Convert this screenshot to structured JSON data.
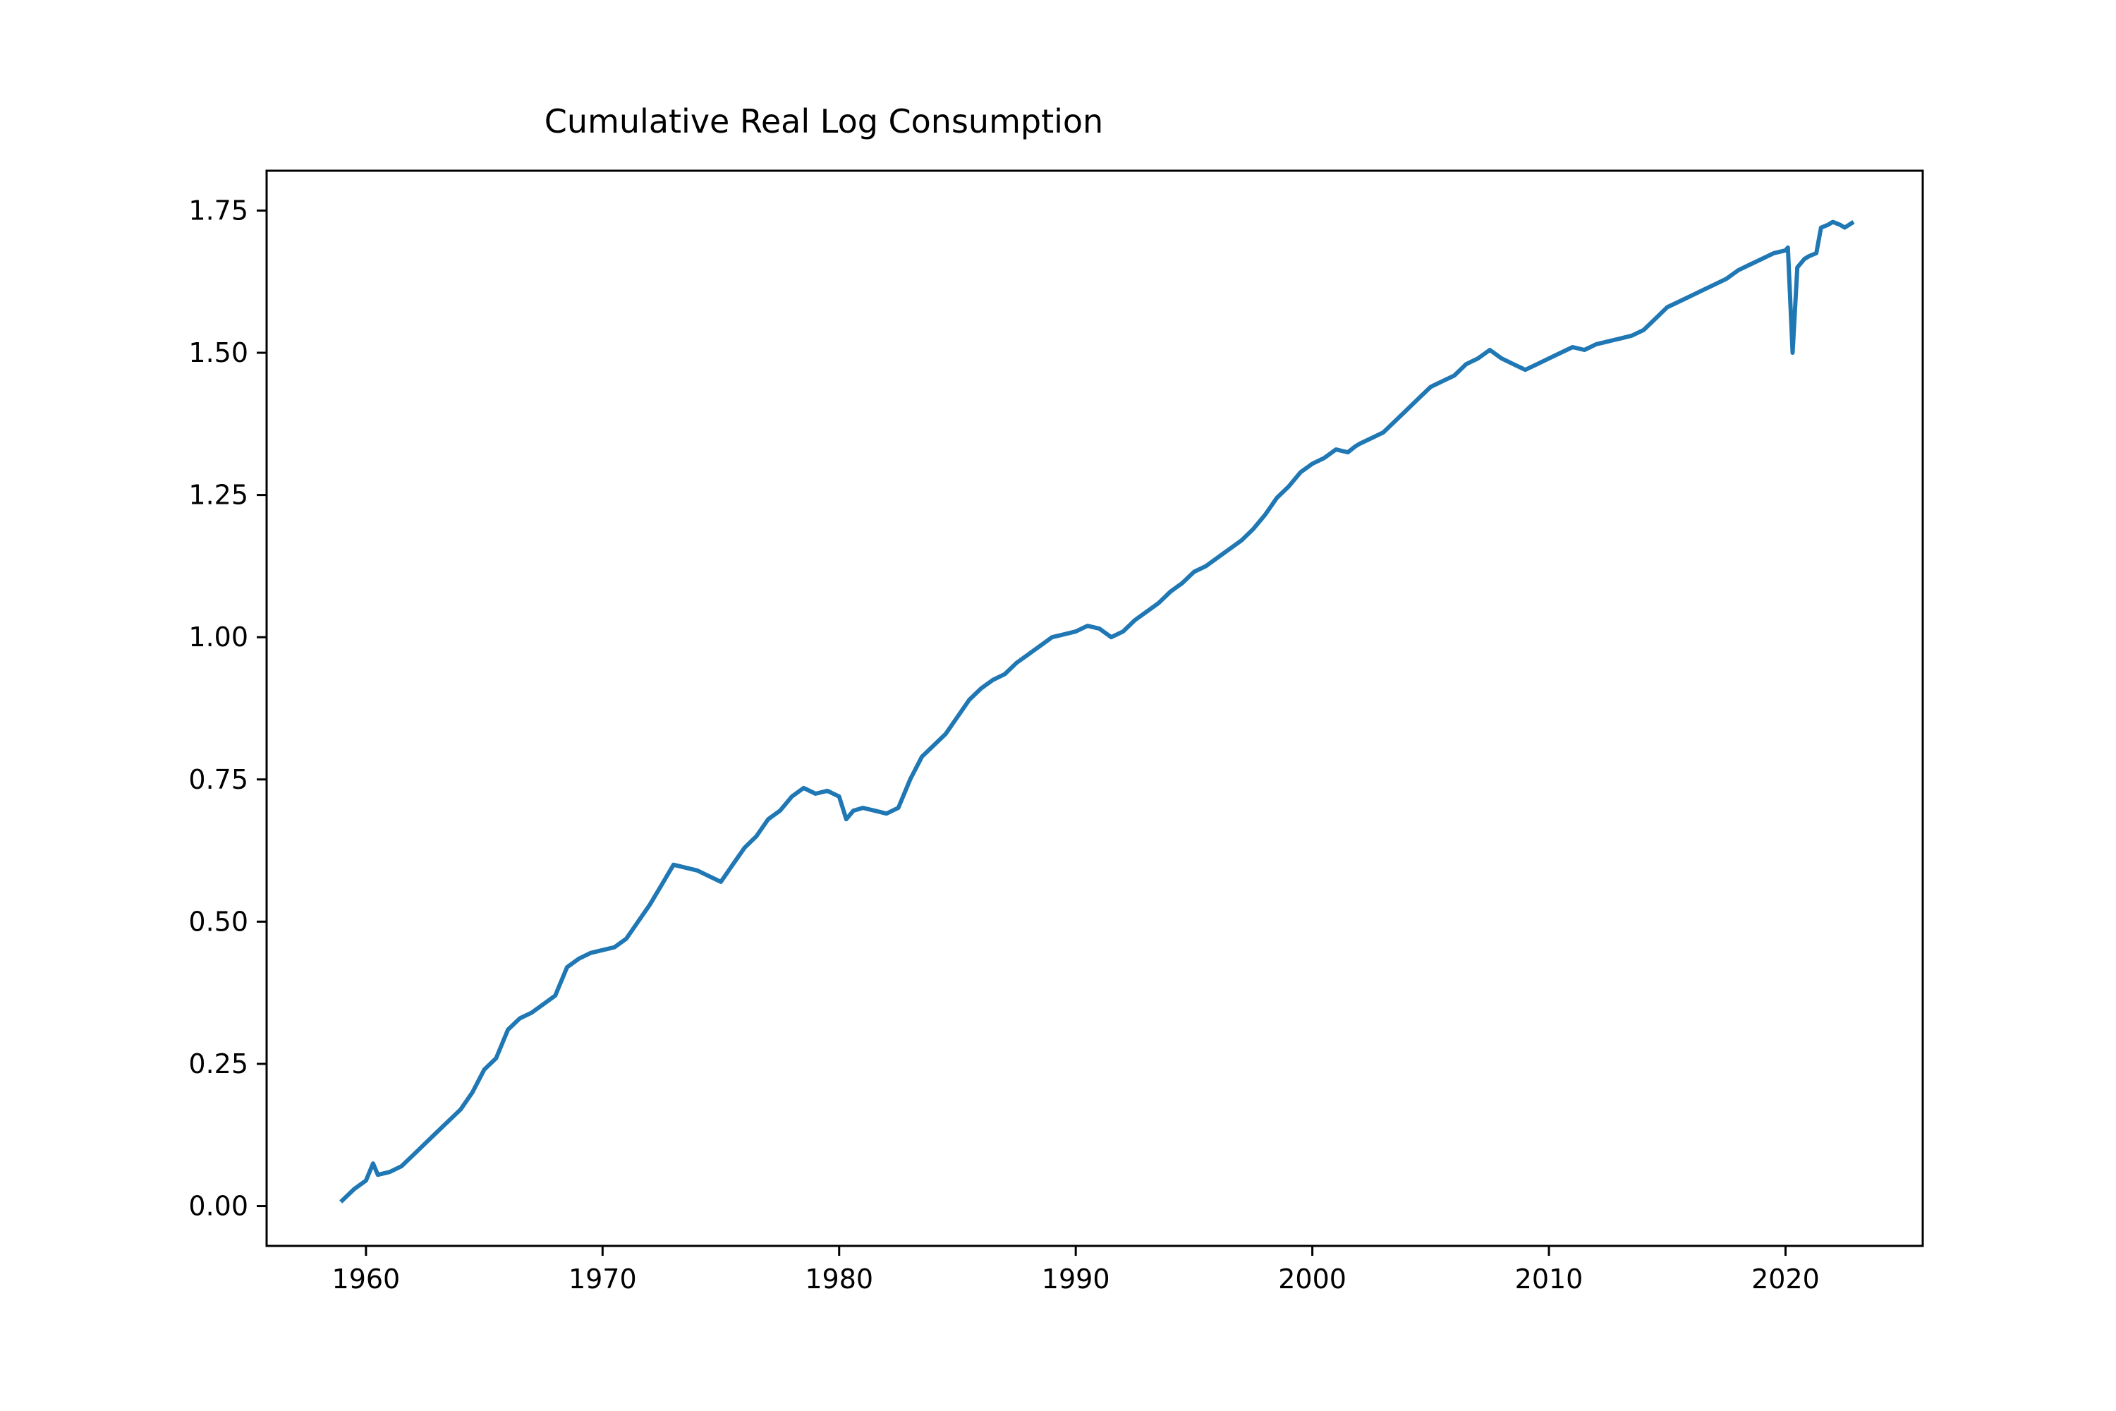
{
  "chart_data": {
    "type": "line",
    "title": "Cumulative Real Log Consumption",
    "xlabel": "",
    "ylabel": "",
    "xlim": [
      1955.8,
      2025.8
    ],
    "ylim": [
      -0.07,
      1.82
    ],
    "x_ticks": [
      1960,
      1970,
      1980,
      1990,
      2000,
      2010,
      2020
    ],
    "x_tick_labels": [
      "1960",
      "1970",
      "1980",
      "1990",
      "2000",
      "2010",
      "2020"
    ],
    "y_ticks": [
      0.0,
      0.25,
      0.5,
      0.75,
      1.0,
      1.25,
      1.5,
      1.75
    ],
    "y_tick_labels": [
      "0.00",
      "0.25",
      "0.50",
      "0.75",
      "1.00",
      "1.25",
      "1.50",
      "1.75"
    ],
    "grid": false,
    "colors": {
      "line": "#1f77b4",
      "axes": "#000000",
      "background": "#ffffff"
    },
    "series": [
      {
        "x": [
          1959.0,
          1959.5,
          1960.0,
          1960.3,
          1960.5,
          1961.0,
          1961.5,
          1962.0,
          1962.5,
          1963.0,
          1963.5,
          1964.0,
          1964.5,
          1965.0,
          1965.5,
          1966.0,
          1966.5,
          1967.0,
          1967.5,
          1968.0,
          1968.5,
          1969.0,
          1969.5,
          1970.0,
          1970.5,
          1971.0,
          1971.5,
          1972.0,
          1972.5,
          1973.0,
          1973.5,
          1974.0,
          1974.5,
          1975.0,
          1975.5,
          1976.0,
          1976.5,
          1977.0,
          1977.5,
          1978.0,
          1978.5,
          1979.0,
          1979.5,
          1980.0,
          1980.3,
          1980.6,
          1981.0,
          1981.5,
          1982.0,
          1982.5,
          1983.0,
          1983.5,
          1984.0,
          1984.5,
          1985.0,
          1985.5,
          1986.0,
          1986.5,
          1987.0,
          1987.5,
          1988.0,
          1988.5,
          1989.0,
          1989.5,
          1990.0,
          1990.5,
          1991.0,
          1991.5,
          1992.0,
          1992.5,
          1993.0,
          1993.5,
          1994.0,
          1994.5,
          1995.0,
          1995.5,
          1996.0,
          1996.5,
          1997.0,
          1997.5,
          1998.0,
          1998.5,
          1999.0,
          1999.5,
          2000.0,
          2000.5,
          2001.0,
          2001.5,
          2001.8,
          2002.0,
          2002.5,
          2003.0,
          2003.5,
          2004.0,
          2004.5,
          2005.0,
          2005.5,
          2006.0,
          2006.5,
          2007.0,
          2007.5,
          2008.0,
          2008.5,
          2009.0,
          2009.5,
          2010.0,
          2010.5,
          2011.0,
          2011.5,
          2012.0,
          2012.5,
          2013.0,
          2013.5,
          2014.0,
          2014.5,
          2015.0,
          2015.5,
          2016.0,
          2016.5,
          2017.0,
          2017.5,
          2018.0,
          2018.5,
          2019.0,
          2019.5,
          2020.0,
          2020.1,
          2020.3,
          2020.5,
          2020.8,
          2021.0,
          2021.3,
          2021.5,
          2021.8,
          2022.0,
          2022.3,
          2022.5,
          2022.8
        ],
        "y": [
          0.01,
          0.03,
          0.045,
          0.075,
          0.055,
          0.06,
          0.07,
          0.09,
          0.11,
          0.13,
          0.15,
          0.17,
          0.2,
          0.24,
          0.26,
          0.31,
          0.33,
          0.34,
          0.355,
          0.37,
          0.42,
          0.435,
          0.445,
          0.45,
          0.455,
          0.47,
          0.5,
          0.53,
          0.565,
          0.6,
          0.595,
          0.59,
          0.58,
          0.57,
          0.6,
          0.63,
          0.65,
          0.68,
          0.695,
          0.72,
          0.735,
          0.725,
          0.73,
          0.72,
          0.68,
          0.695,
          0.7,
          0.695,
          0.69,
          0.7,
          0.75,
          0.79,
          0.81,
          0.83,
          0.86,
          0.89,
          0.91,
          0.925,
          0.935,
          0.955,
          0.97,
          0.985,
          1.0,
          1.005,
          1.01,
          1.02,
          1.015,
          1.0,
          1.01,
          1.03,
          1.045,
          1.06,
          1.08,
          1.095,
          1.115,
          1.125,
          1.14,
          1.155,
          1.17,
          1.19,
          1.215,
          1.245,
          1.265,
          1.29,
          1.305,
          1.315,
          1.33,
          1.325,
          1.335,
          1.34,
          1.35,
          1.36,
          1.38,
          1.4,
          1.42,
          1.44,
          1.45,
          1.46,
          1.48,
          1.49,
          1.505,
          1.49,
          1.48,
          1.47,
          1.48,
          1.49,
          1.5,
          1.51,
          1.505,
          1.515,
          1.52,
          1.525,
          1.53,
          1.54,
          1.56,
          1.58,
          1.59,
          1.6,
          1.61,
          1.62,
          1.63,
          1.645,
          1.655,
          1.665,
          1.675,
          1.68,
          1.685,
          1.5,
          1.65,
          1.665,
          1.67,
          1.675,
          1.72,
          1.725,
          1.73,
          1.725,
          1.72,
          1.728
        ]
      }
    ]
  }
}
